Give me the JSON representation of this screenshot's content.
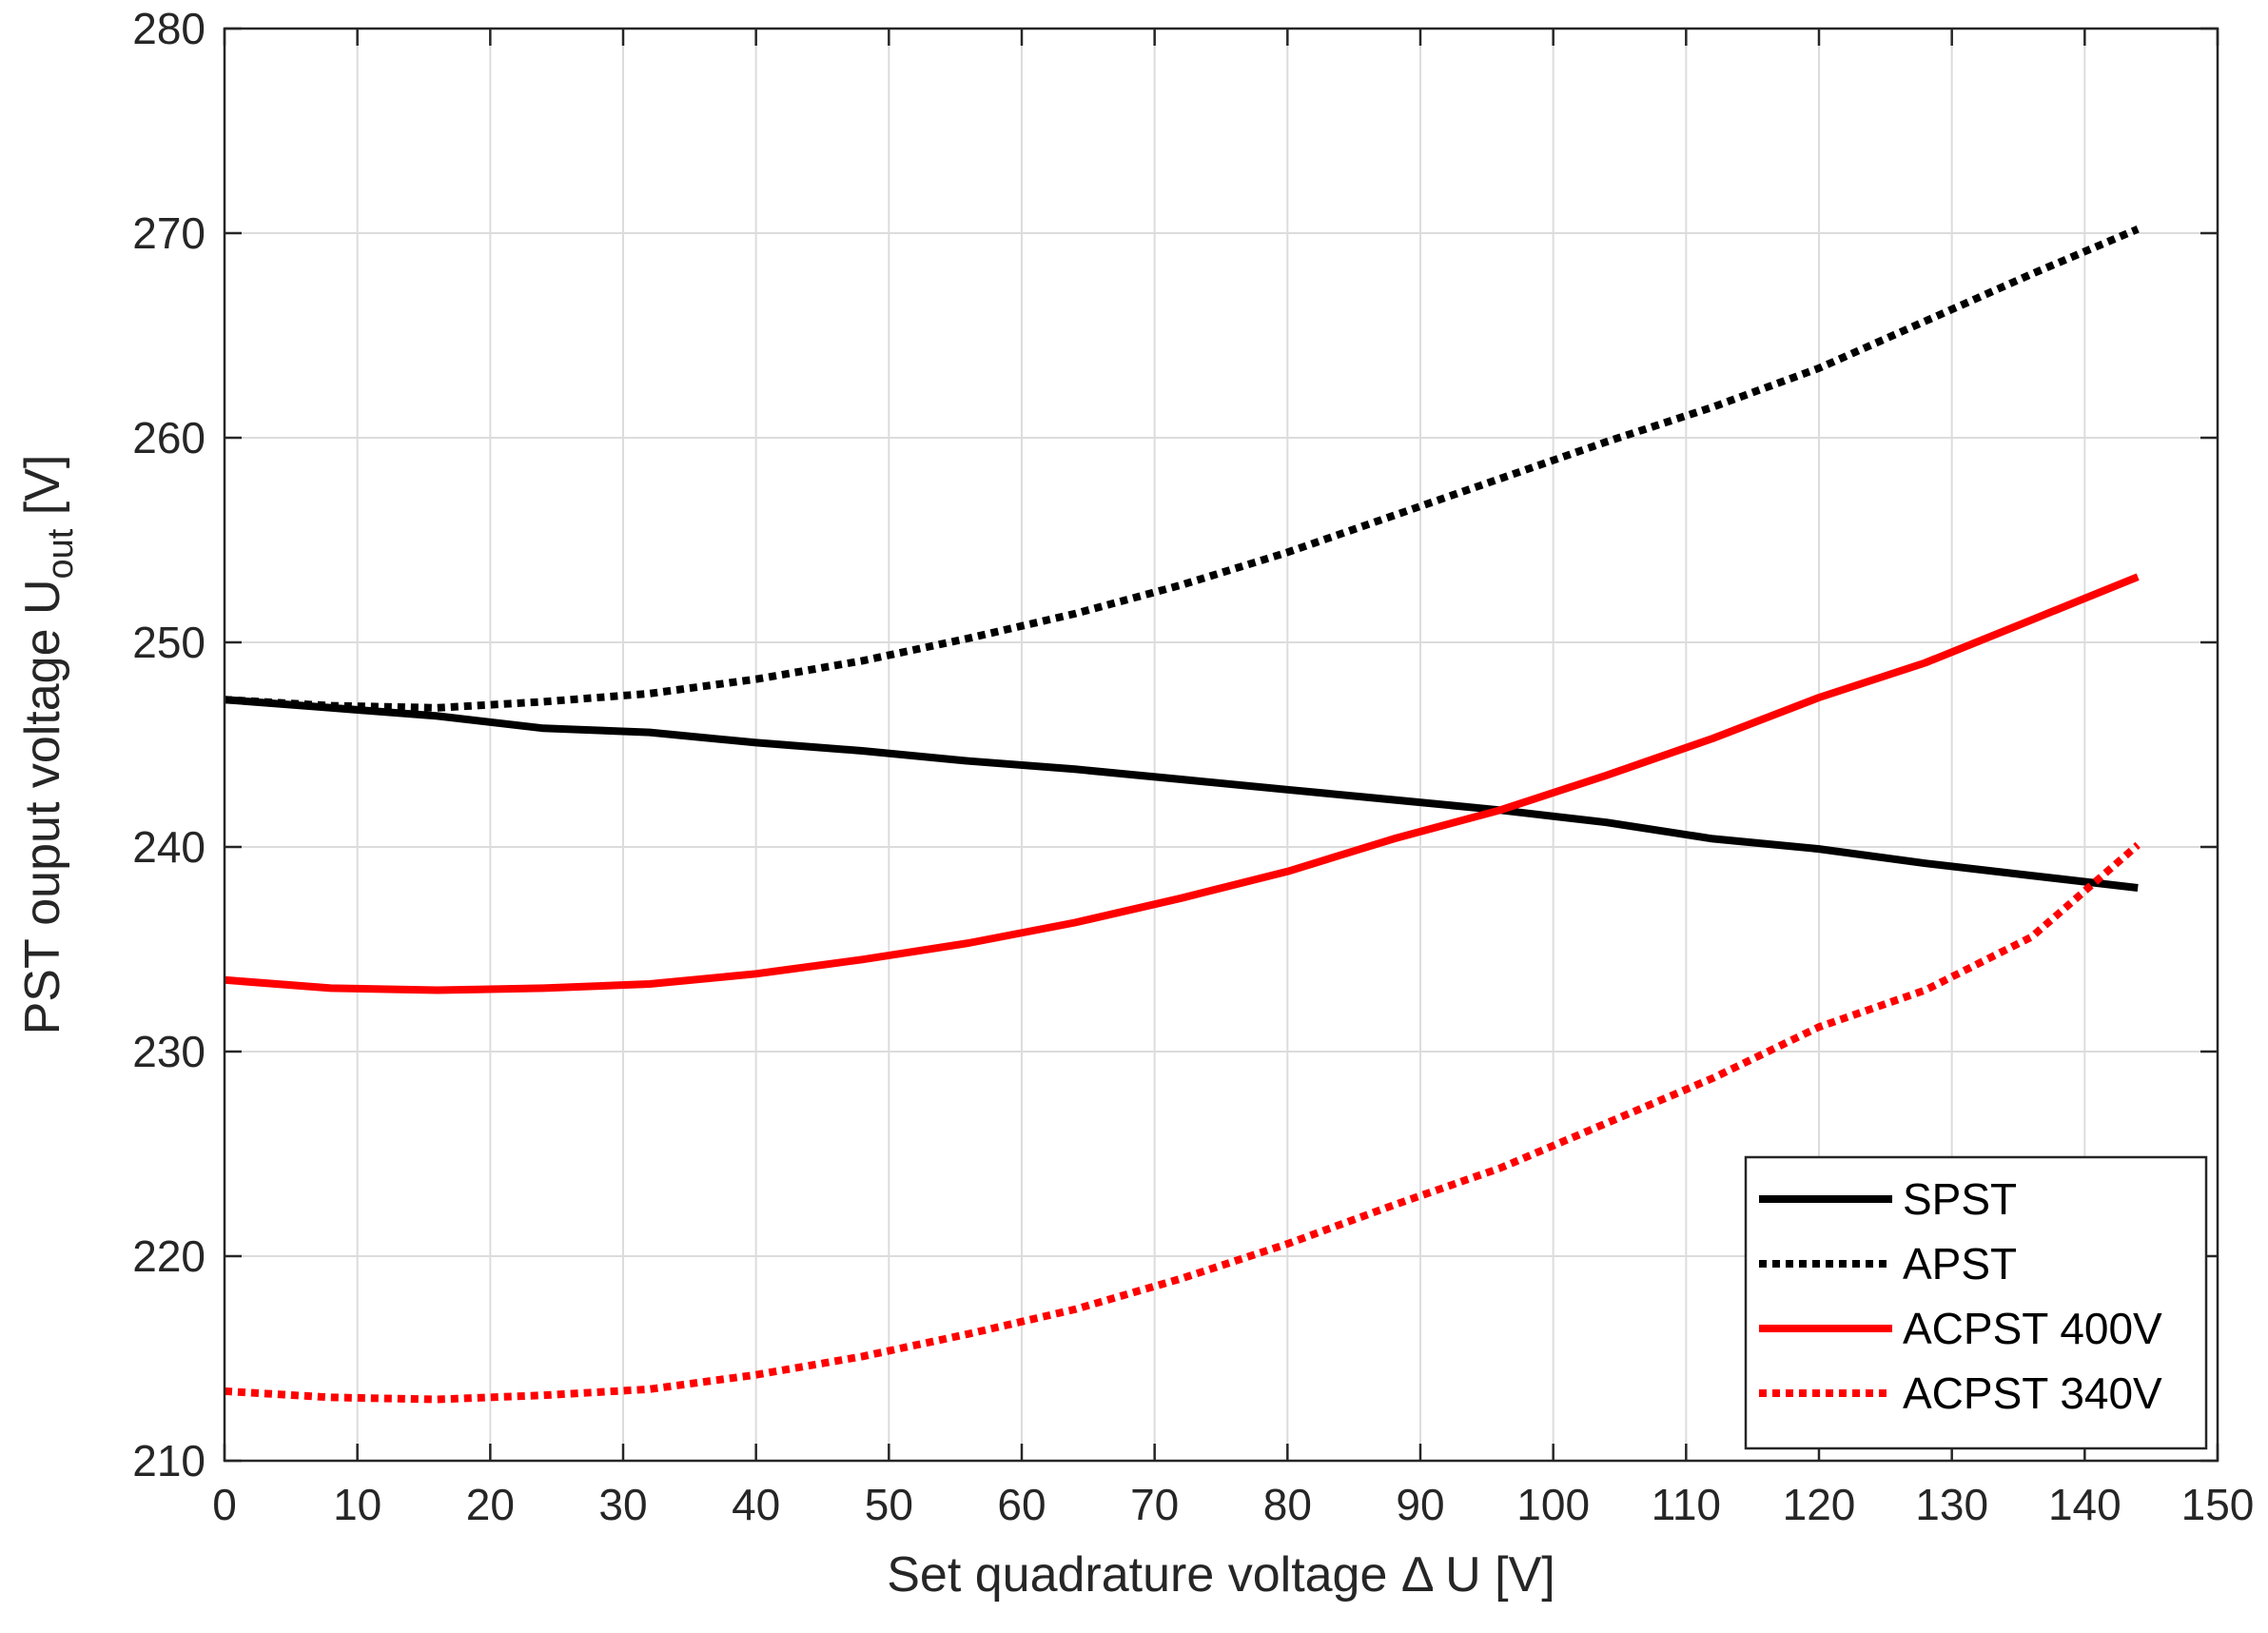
{
  "chart_data": {
    "type": "line",
    "xlabel": "Set quadrature voltage Δ U [V]",
    "ylabel": "PST ouput voltage U",
    "ylabel_subscript": "out",
    "ylabel_unit": " [V]",
    "xlim": [
      0,
      150
    ],
    "ylim": [
      210,
      280
    ],
    "xticks": [
      0,
      10,
      20,
      30,
      40,
      50,
      60,
      70,
      80,
      90,
      100,
      110,
      120,
      130,
      140,
      150
    ],
    "yticks": [
      210,
      220,
      230,
      240,
      250,
      260,
      270,
      280
    ],
    "grid": true,
    "legend_position": "bottom-right",
    "series": [
      {
        "name": "SPST",
        "color": "#000000",
        "dash": "solid",
        "x": [
          0,
          8,
          16,
          24,
          32,
          40,
          48,
          56,
          64,
          72,
          80,
          88,
          96,
          104,
          112,
          120,
          128,
          136,
          144
        ],
        "y": [
          247.2,
          246.8,
          246.4,
          245.8,
          245.6,
          245.1,
          244.7,
          244.2,
          243.8,
          243.3,
          242.8,
          242.3,
          241.8,
          241.2,
          240.4,
          239.9,
          239.2,
          238.6,
          238.0
        ]
      },
      {
        "name": "APST",
        "color": "#000000",
        "dash": "dotted",
        "x": [
          0,
          8,
          16,
          24,
          32,
          40,
          48,
          56,
          64,
          72,
          80,
          88,
          96,
          104,
          112,
          120,
          128,
          136,
          144
        ],
        "y": [
          247.2,
          246.9,
          246.8,
          247.1,
          247.5,
          248.2,
          249.1,
          250.2,
          251.4,
          252.8,
          254.4,
          256.2,
          258.0,
          259.8,
          261.5,
          263.4,
          265.7,
          268.0,
          270.2
        ]
      },
      {
        "name": "ACPST 400V",
        "color": "#ff0000",
        "dash": "solid",
        "x": [
          0,
          8,
          16,
          24,
          32,
          40,
          48,
          56,
          64,
          72,
          80,
          88,
          96,
          104,
          112,
          120,
          128,
          136,
          144
        ],
        "y": [
          233.5,
          233.1,
          233.0,
          233.1,
          233.3,
          233.8,
          234.5,
          235.3,
          236.3,
          237.5,
          238.8,
          240.4,
          241.8,
          243.5,
          245.3,
          247.3,
          249.0,
          251.1,
          253.2
        ]
      },
      {
        "name": "ACPST 340V",
        "color": "#ff0000",
        "dash": "dotted",
        "x": [
          0,
          8,
          16,
          24,
          32,
          40,
          48,
          56,
          64,
          72,
          80,
          88,
          96,
          104,
          112,
          120,
          128,
          136,
          144
        ],
        "y": [
          213.4,
          213.1,
          213.0,
          213.2,
          213.5,
          214.2,
          215.1,
          216.2,
          217.4,
          218.9,
          220.6,
          222.5,
          224.3,
          226.5,
          228.7,
          231.2,
          233.0,
          235.6,
          240.1
        ]
      }
    ]
  }
}
